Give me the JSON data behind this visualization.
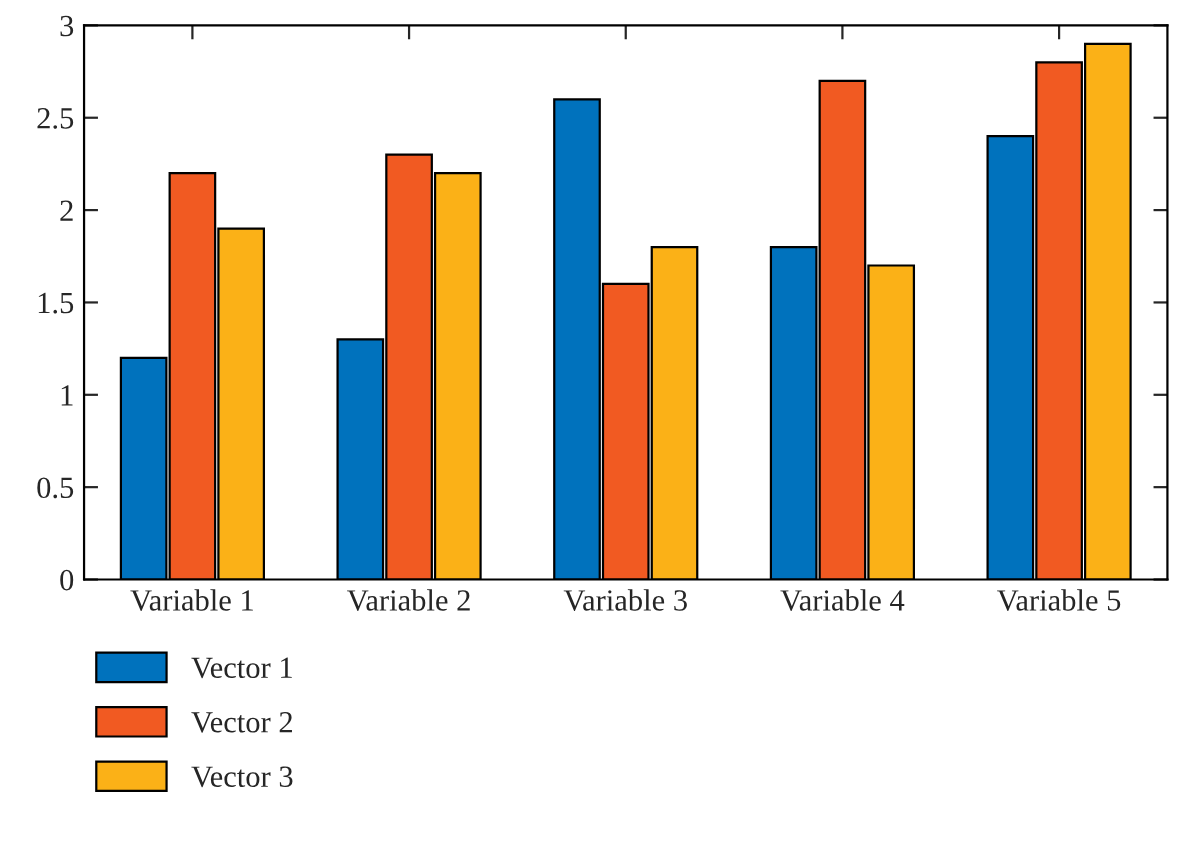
{
  "chart_data": {
    "type": "bar",
    "categories": [
      "Variable 1",
      "Variable 2",
      "Variable 3",
      "Variable 4",
      "Variable 5"
    ],
    "series": [
      {
        "name": "Vector 1",
        "color": "#0072bd",
        "values": [
          1.2,
          1.3,
          2.6,
          1.8,
          2.4
        ]
      },
      {
        "name": "Vector 2",
        "color": "#f15a22",
        "values": [
          2.2,
          2.3,
          1.6,
          2.7,
          2.8
        ]
      },
      {
        "name": "Vector 3",
        "color": "#fbb117",
        "values": [
          1.9,
          2.2,
          1.8,
          1.7,
          2.9
        ]
      }
    ],
    "ylim": [
      0,
      3
    ],
    "yticks": [
      0,
      0.5,
      1,
      1.5,
      2,
      2.5,
      3
    ],
    "grid": false,
    "legend": "bottom left"
  }
}
